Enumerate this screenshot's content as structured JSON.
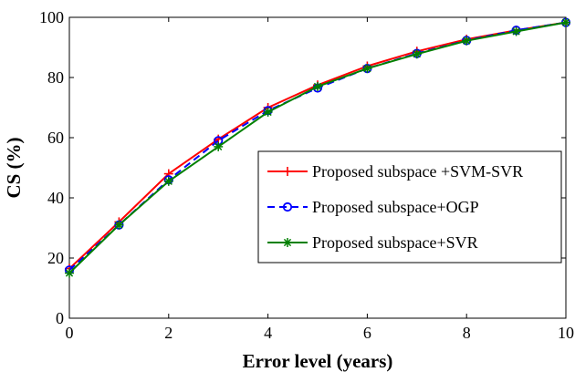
{
  "chart_data": {
    "type": "line",
    "title": "",
    "xlabel": "Error level (years)",
    "ylabel": "CS (%)",
    "xlim": [
      0,
      10
    ],
    "ylim": [
      0,
      100
    ],
    "xticks": [
      "0",
      "2",
      "4",
      "6",
      "8",
      "10"
    ],
    "yticks": [
      "0",
      "20",
      "40",
      "60",
      "80",
      "100"
    ],
    "grid": false,
    "legend_position": "right",
    "x": [
      0,
      1,
      2,
      3,
      4,
      5,
      6,
      7,
      8,
      9,
      10
    ],
    "series": [
      {
        "name": "Proposed subspace +SVM-SVR",
        "color": "#ff0000",
        "line_style": "solid",
        "marker": "plus",
        "values": [
          16.5,
          32.0,
          48.0,
          59.5,
          70.0,
          77.5,
          83.8,
          88.7,
          92.7,
          95.7,
          98.3
        ]
      },
      {
        "name": "Proposed subspace+OGP",
        "color": "#0000ff",
        "line_style": "dashed",
        "marker": "circle",
        "values": [
          16.0,
          31.0,
          46.0,
          59.0,
          69.0,
          76.5,
          83.0,
          88.0,
          92.3,
          95.7,
          98.3
        ]
      },
      {
        "name": "Proposed subspace+SVR",
        "color": "#008000",
        "line_style": "solid",
        "marker": "star",
        "values": [
          15.0,
          31.0,
          45.5,
          57.0,
          68.5,
          77.0,
          83.0,
          87.8,
          92.2,
          95.3,
          98.3
        ]
      }
    ]
  }
}
